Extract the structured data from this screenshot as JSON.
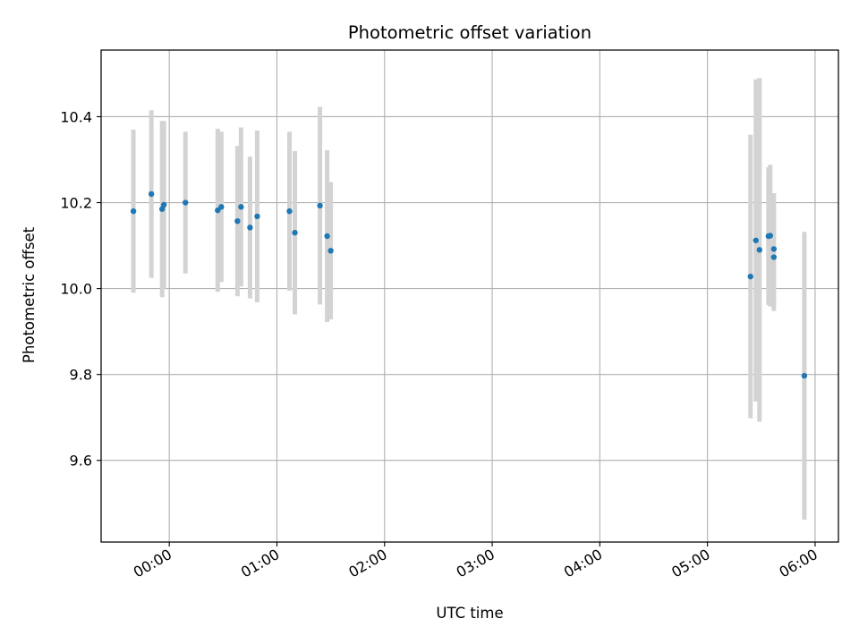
{
  "chart_data": {
    "type": "scatter",
    "title": "Photometric offset variation",
    "xlabel": "UTC time",
    "ylabel": "Photometric offset",
    "grid": true,
    "x_axis_kind": "time",
    "xlim": [
      "23:22",
      "06:13"
    ],
    "ylim": [
      9.41,
      10.555
    ],
    "x_ticks": [
      "00:00",
      "01:00",
      "02:00",
      "03:00",
      "04:00",
      "05:00",
      "06:00"
    ],
    "y_ticks": [
      9.6,
      9.8,
      10.0,
      10.2,
      10.4
    ],
    "y_tick_labels": [
      "9.6",
      "9.8",
      "10.0",
      "10.2",
      "10.4"
    ],
    "colors": {
      "points": "#1f77b4",
      "error_bars": "#d3d3d3",
      "grid": "#b0b0b0"
    },
    "series": [
      {
        "points": [
          {
            "x": "23:40",
            "y": 10.18,
            "err": 0.19
          },
          {
            "x": "23:50",
            "y": 10.22,
            "err": 0.195
          },
          {
            "x": "23:56",
            "y": 10.185,
            "err": 0.205
          },
          {
            "x": "23:57",
            "y": 10.195,
            "err": 0.195
          },
          {
            "x": "00:09",
            "y": 10.2,
            "err": 0.165
          },
          {
            "x": "00:27",
            "y": 10.182,
            "err": 0.19
          },
          {
            "x": "00:29",
            "y": 10.19,
            "err": 0.175
          },
          {
            "x": "00:38",
            "y": 10.157,
            "err": 0.175
          },
          {
            "x": "00:40",
            "y": 10.19,
            "err": 0.185
          },
          {
            "x": "00:45",
            "y": 10.142,
            "err": 0.165
          },
          {
            "x": "00:49",
            "y": 10.168,
            "err": 0.2
          },
          {
            "x": "01:07",
            "y": 10.18,
            "err": 0.185
          },
          {
            "x": "01:10",
            "y": 10.13,
            "err": 0.19
          },
          {
            "x": "01:24",
            "y": 10.193,
            "err": 0.23
          },
          {
            "x": "01:28",
            "y": 10.122,
            "err": 0.2
          },
          {
            "x": "01:30",
            "y": 10.088,
            "err": 0.16
          },
          {
            "x": "05:24",
            "y": 10.028,
            "err": 0.33
          },
          {
            "x": "05:27",
            "y": 10.112,
            "err": 0.375
          },
          {
            "x": "05:29",
            "y": 10.09,
            "err": 0.4
          },
          {
            "x": "05:34",
            "y": 10.122,
            "err": 0.16
          },
          {
            "x": "05:35",
            "y": 10.123,
            "err": 0.165
          },
          {
            "x": "05:37",
            "y": 10.092,
            "err": 0.13
          },
          {
            "x": "05:37",
            "y": 10.073,
            "err": 0.125
          },
          {
            "x": "05:54",
            "y": 9.797,
            "err": 0.335
          }
        ]
      }
    ]
  }
}
